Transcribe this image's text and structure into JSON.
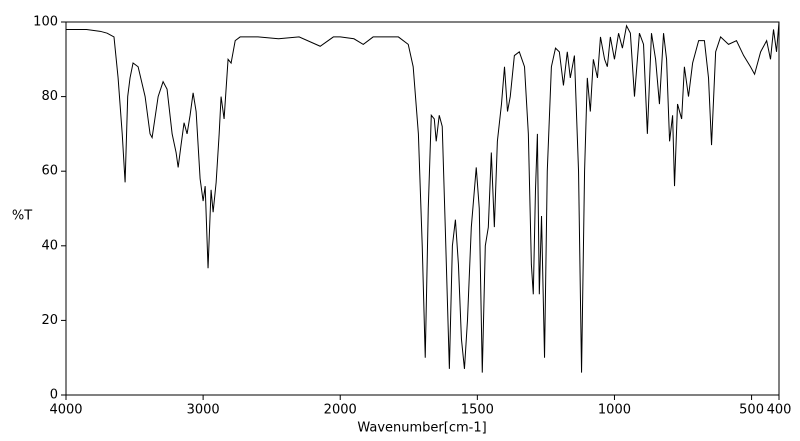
{
  "chart_data": {
    "type": "line",
    "xlabel": "Wavenumber[cm-1]",
    "ylabel": "%T",
    "xlim": [
      4000,
      400
    ],
    "xticks": [
      4000,
      3000,
      2000,
      1500,
      1000,
      500,
      400
    ],
    "xscale_break": 2000,
    "ylim": [
      0,
      100
    ],
    "yticks": [
      0,
      20,
      40,
      60,
      80,
      100
    ],
    "grid": false,
    "color": "#000000",
    "x": [
      4000,
      3850,
      3750,
      3700,
      3650,
      3620,
      3590,
      3569,
      3550,
      3533,
      3511,
      3474,
      3423,
      3387,
      3372,
      3328,
      3292,
      3263,
      3226,
      3197,
      3182,
      3161,
      3139,
      3117,
      3095,
      3073,
      3051,
      3022,
      3000,
      2985,
      2964,
      2942,
      2927,
      2905,
      2883,
      2869,
      2847,
      2818,
      2796,
      2766,
      2730,
      2600,
      2450,
      2300,
      2146,
      2050,
      2000,
      1950,
      1916,
      1880,
      1788,
      1752,
      1734,
      1715,
      1701,
      1690,
      1679,
      1668,
      1657,
      1650,
      1639,
      1628,
      1617,
      1602,
      1591,
      1580,
      1569,
      1558,
      1547,
      1536,
      1522,
      1504,
      1493,
      1482,
      1471,
      1460,
      1449,
      1438,
      1427,
      1412,
      1401,
      1390,
      1380,
      1365,
      1347,
      1328,
      1314,
      1303,
      1296,
      1288,
      1281,
      1274,
      1266,
      1255,
      1245,
      1230,
      1215,
      1201,
      1186,
      1172,
      1161,
      1146,
      1131,
      1120,
      1109,
      1099,
      1088,
      1077,
      1062,
      1051,
      1036,
      1026,
      1015,
      1000,
      985,
      971,
      956,
      942,
      927,
      909,
      894,
      880,
      865,
      850,
      836,
      821,
      810,
      799,
      788,
      781,
      770,
      755,
      745,
      730,
      715,
      693,
      672,
      657,
      646,
      631,
      613,
      584,
      555,
      529,
      504,
      489,
      467,
      445,
      431,
      420,
      409,
      400
    ],
    "values": [
      98,
      98,
      97.5,
      97,
      96,
      85,
      70,
      57,
      80,
      85,
      89,
      88,
      80,
      70,
      69,
      80,
      84,
      82,
      70,
      65,
      61,
      67,
      73,
      70,
      75,
      81,
      76,
      58,
      52,
      56,
      34,
      55,
      49,
      57,
      70,
      80,
      74,
      90,
      89,
      95,
      96,
      96,
      95.5,
      96,
      93.5,
      96,
      96,
      95.5,
      94,
      96,
      96,
      94,
      88,
      70,
      40,
      10,
      50,
      75,
      74,
      68,
      75,
      72,
      45,
      7,
      40,
      47,
      35,
      15,
      7,
      20,
      45,
      61,
      50,
      6,
      40,
      45,
      65,
      45,
      68,
      78,
      88,
      76,
      80,
      91,
      92,
      88,
      70,
      35,
      27,
      55,
      70,
      27,
      48,
      10,
      60,
      88,
      93,
      92,
      83,
      92,
      85,
      91,
      60,
      6,
      60,
      85,
      76,
      90,
      85,
      96,
      90,
      88,
      96,
      90,
      97,
      93,
      99,
      97,
      80,
      97,
      94,
      70,
      97,
      90,
      78,
      97,
      90,
      68,
      75,
      56,
      78,
      74,
      88,
      80,
      89,
      95,
      95,
      85,
      67,
      92,
      96,
      94,
      95,
      91,
      88,
      86,
      92,
      95,
      90,
      98,
      92,
      100
    ]
  }
}
